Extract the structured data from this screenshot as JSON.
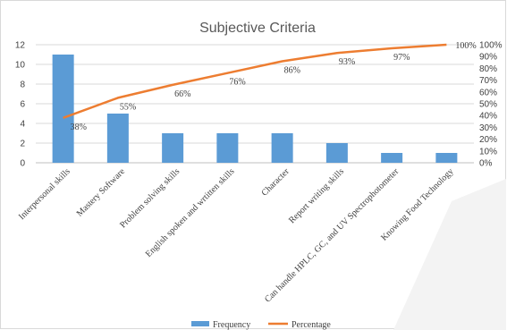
{
  "chart_data": {
    "type": "bar",
    "title": "Subjective Criteria",
    "categories": [
      "Interpersonal skills",
      "Mastery Software",
      "Problem solving skills",
      "English spoken and wrtitten skills",
      "Character",
      "Report writing skills",
      "Can handle HPLC, GC, and UV Spectrophotometer",
      "Knowing Food Technology"
    ],
    "series": [
      {
        "name": "Frequency",
        "type": "bar",
        "axis": "left",
        "values": [
          11,
          5,
          3,
          3,
          3,
          2,
          1,
          1
        ],
        "color": "#5b9bd5"
      },
      {
        "name": "Percentage",
        "type": "line",
        "axis": "right",
        "values": [
          38,
          55,
          66,
          76,
          86,
          93,
          97,
          100
        ],
        "color": "#ed7d31"
      }
    ],
    "data_labels": [
      "38%",
      "55%",
      "66%",
      "76%",
      "86%",
      "93%",
      "97%",
      "100%"
    ],
    "y_left": {
      "min": 0,
      "max": 12,
      "ticks": [
        "0",
        "2",
        "4",
        "6",
        "8",
        "10",
        "12"
      ]
    },
    "y_right": {
      "min": 0,
      "max": 100,
      "ticks": [
        "0%",
        "10%",
        "20%",
        "30%",
        "40%",
        "50%",
        "60%",
        "70%",
        "80%",
        "90%",
        "100%"
      ]
    },
    "grid": true,
    "legend_position": "bottom"
  }
}
